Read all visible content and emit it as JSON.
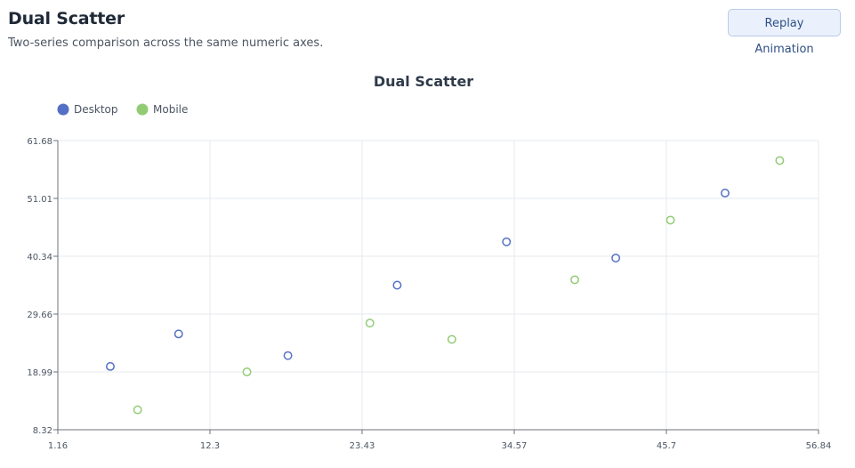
{
  "header": {
    "title": "Dual Scatter",
    "subtitle": "Two-series comparison across the same numeric axes.",
    "replay_label": "Replay Animation"
  },
  "colors": {
    "desktop": "#5470c6",
    "mobile": "#91cc75",
    "grid": "#e6e8ee",
    "axis": "#6e7079"
  },
  "chart_data": {
    "type": "scatter",
    "title": "Dual Scatter",
    "xlabel": "",
    "ylabel": "",
    "grid": true,
    "legend_position": "top-left",
    "xlim": [
      1.16,
      56.84
    ],
    "ylim": [
      8.32,
      61.68
    ],
    "x_ticks": [
      "1.16",
      "12.3",
      "23.43",
      "34.57",
      "45.7",
      "56.84"
    ],
    "y_ticks": [
      "8.32",
      "18.99",
      "29.66",
      "40.34",
      "51.01",
      "61.68"
    ],
    "series": [
      {
        "name": "Desktop",
        "color": "#5470c6",
        "points": [
          [
            5,
            20
          ],
          [
            10,
            26
          ],
          [
            18,
            22
          ],
          [
            26,
            35
          ],
          [
            34,
            43
          ],
          [
            42,
            40
          ],
          [
            50,
            52
          ]
        ]
      },
      {
        "name": "Mobile",
        "color": "#91cc75",
        "points": [
          [
            7,
            12
          ],
          [
            15,
            19
          ],
          [
            24,
            28
          ],
          [
            30,
            25
          ],
          [
            39,
            36
          ],
          [
            46,
            47
          ],
          [
            54,
            58
          ]
        ]
      }
    ]
  }
}
